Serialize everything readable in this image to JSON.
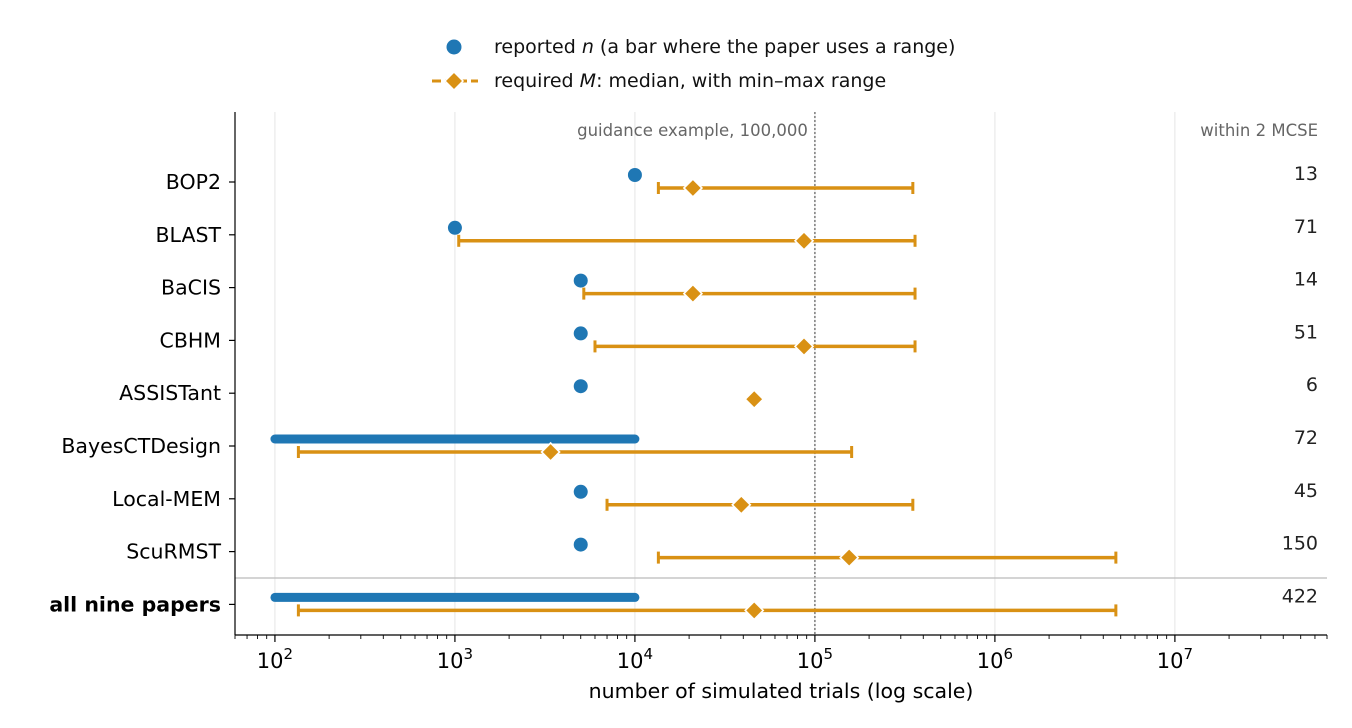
{
  "legend": {
    "reported": {
      "pre": "reported ",
      "var": "n",
      "post": " (a bar where the paper uses a range)"
    },
    "required": {
      "pre": "required ",
      "var": "M",
      "post": ": median, with min–max range"
    }
  },
  "chart_data": {
    "type": "scatter",
    "xlabel": "number of simulated trials (log scale)",
    "ylabel": "",
    "xscale": "log",
    "xlim": [
      60,
      70000000
    ],
    "x_ticks": [
      {
        "value": 100,
        "base": "10",
        "exp": "2"
      },
      {
        "value": 1000,
        "base": "10",
        "exp": "3"
      },
      {
        "value": 10000,
        "base": "10",
        "exp": "4"
      },
      {
        "value": 100000,
        "base": "10",
        "exp": "5"
      },
      {
        "value": 1000000,
        "base": "10",
        "exp": "6"
      },
      {
        "value": 10000000,
        "base": "10",
        "exp": "7"
      }
    ],
    "grid": "vertical at major ticks",
    "legend_position": "top-center",
    "reference_line": {
      "x": 100000,
      "label": "guidance example, 100,000"
    },
    "count_column_header": "within 2 MCSE",
    "colors": {
      "reported": "#1f77b4",
      "required": "#d99114",
      "reference": "#666666",
      "grid": "#e5e5e5"
    },
    "rows": [
      {
        "label": "BOP2",
        "bold": false,
        "reported": 10000,
        "req_median": 21000,
        "req_min": 13500,
        "req_max": 350000,
        "count": "13"
      },
      {
        "label": "BLAST",
        "bold": false,
        "reported": 1000,
        "req_median": 87000,
        "req_min": 1050,
        "req_max": 360000,
        "count": "71"
      },
      {
        "label": "BaCIS",
        "bold": false,
        "reported": 5000,
        "req_median": 21000,
        "req_min": 5200,
        "req_max": 360000,
        "count": "14"
      },
      {
        "label": "CBHM",
        "bold": false,
        "reported": 5000,
        "req_median": 87000,
        "req_min": 6000,
        "req_max": 360000,
        "count": "51"
      },
      {
        "label": "ASSISTant",
        "bold": false,
        "reported": 5000,
        "req_median": 46000,
        "req_min": null,
        "req_max": null,
        "count": "6"
      },
      {
        "label": "BayesCTDesign",
        "bold": false,
        "reported_range": [
          100,
          10000
        ],
        "req_median": 3400,
        "req_min": 135,
        "req_max": 160000,
        "count": "72"
      },
      {
        "label": "Local-MEM",
        "bold": false,
        "reported": 5000,
        "req_median": 39000,
        "req_min": 7000,
        "req_max": 350000,
        "count": "45"
      },
      {
        "label": "ScuRMST",
        "bold": false,
        "reported": 5000,
        "req_median": 155000,
        "req_min": 13500,
        "req_max": 4700000,
        "count": "150"
      },
      {
        "label": "all nine papers",
        "bold": true,
        "reported_range": [
          100,
          10000
        ],
        "req_median": 46000,
        "req_min": 135,
        "req_max": 4700000,
        "count": "422"
      }
    ]
  }
}
